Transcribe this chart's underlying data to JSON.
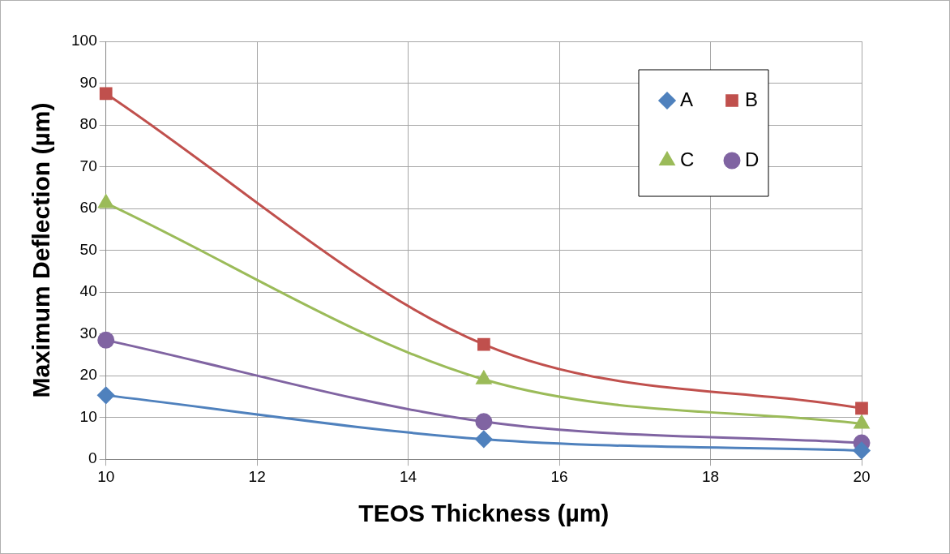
{
  "chart_data": {
    "type": "line",
    "xlabel": "TEOS Thickness (µm)",
    "ylabel": "Maximum Deflection (µm)",
    "x": [
      10,
      15,
      20
    ],
    "xlim": [
      10,
      20
    ],
    "xticks": [
      10,
      12,
      14,
      16,
      18,
      20
    ],
    "ylim": [
      0,
      100
    ],
    "yticks": [
      0,
      10,
      20,
      30,
      40,
      50,
      60,
      70,
      80,
      90,
      100
    ],
    "grid": true,
    "legend": "top right",
    "series": [
      {
        "name": "A",
        "color": "#4f81bd",
        "marker": "diamond",
        "values": [
          15.3,
          4.8,
          2.1
        ]
      },
      {
        "name": "B",
        "color": "#c0504d",
        "marker": "square",
        "values": [
          87.5,
          27.5,
          12.2
        ]
      },
      {
        "name": "C",
        "color": "#9bbb59",
        "marker": "triangle",
        "values": [
          61.3,
          19.1,
          8.5
        ]
      },
      {
        "name": "D",
        "color": "#8064a2",
        "marker": "circle",
        "values": [
          28.5,
          9.0,
          3.9
        ]
      }
    ]
  }
}
